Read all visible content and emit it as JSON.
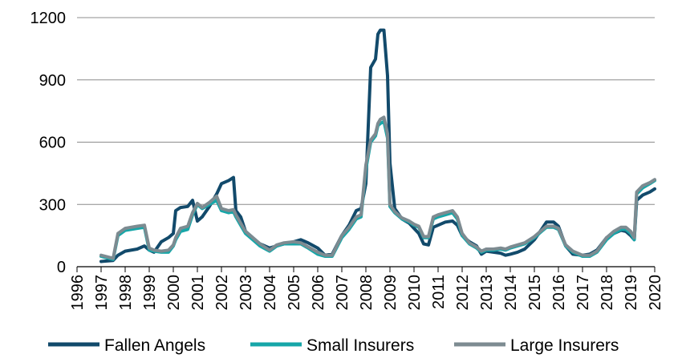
{
  "chart_data": {
    "type": "line",
    "title": "",
    "xlabel": "",
    "ylabel": "",
    "xlim": [
      1996,
      2020
    ],
    "ylim": [
      0,
      1200
    ],
    "x_ticks": [
      "1996",
      "1997",
      "1998",
      "1999",
      "2000",
      "2001",
      "2002",
      "2003",
      "2004",
      "2005",
      "2006",
      "2007",
      "2008",
      "2009",
      "2010",
      "2011",
      "2012",
      "2013",
      "2014",
      "2015",
      "2016",
      "2017",
      "2018",
      "2019",
      "2020"
    ],
    "y_ticks": [
      "0",
      "300",
      "600",
      "900",
      "1200"
    ],
    "grid": "horizontal",
    "legend_position": "bottom",
    "series": [
      {
        "name": "Fallen Angels",
        "color": "#124a6b",
        "points": [
          [
            1997.0,
            25
          ],
          [
            1997.5,
            30
          ],
          [
            1997.7,
            55
          ],
          [
            1998.0,
            75
          ],
          [
            1998.5,
            85
          ],
          [
            1998.8,
            100
          ],
          [
            1999.0,
            80
          ],
          [
            1999.2,
            70
          ],
          [
            1999.5,
            120
          ],
          [
            1999.8,
            140
          ],
          [
            2000.0,
            160
          ],
          [
            2000.1,
            270
          ],
          [
            2000.3,
            285
          ],
          [
            2000.6,
            290
          ],
          [
            2000.8,
            320
          ],
          [
            2001.0,
            220
          ],
          [
            2001.2,
            240
          ],
          [
            2001.5,
            290
          ],
          [
            2001.8,
            350
          ],
          [
            2002.0,
            400
          ],
          [
            2002.3,
            415
          ],
          [
            2002.5,
            430
          ],
          [
            2002.6,
            270
          ],
          [
            2002.8,
            240
          ],
          [
            2003.0,
            170
          ],
          [
            2003.3,
            140
          ],
          [
            2003.6,
            110
          ],
          [
            2004.0,
            90
          ],
          [
            2004.3,
            100
          ],
          [
            2004.6,
            110
          ],
          [
            2005.0,
            120
          ],
          [
            2005.3,
            130
          ],
          [
            2005.6,
            115
          ],
          [
            2006.0,
            90
          ],
          [
            2006.3,
            55
          ],
          [
            2006.6,
            60
          ],
          [
            2007.0,
            150
          ],
          [
            2007.3,
            200
          ],
          [
            2007.6,
            270
          ],
          [
            2007.8,
            280
          ],
          [
            2008.0,
            400
          ],
          [
            2008.2,
            960
          ],
          [
            2008.4,
            1000
          ],
          [
            2008.5,
            1120
          ],
          [
            2008.6,
            1140
          ],
          [
            2008.75,
            1140
          ],
          [
            2008.9,
            920
          ],
          [
            2009.0,
            500
          ],
          [
            2009.2,
            280
          ],
          [
            2009.5,
            230
          ],
          [
            2009.8,
            210
          ],
          [
            2010.0,
            185
          ],
          [
            2010.2,
            160
          ],
          [
            2010.4,
            110
          ],
          [
            2010.6,
            105
          ],
          [
            2010.8,
            190
          ],
          [
            2011.0,
            200
          ],
          [
            2011.3,
            215
          ],
          [
            2011.6,
            220
          ],
          [
            2011.8,
            200
          ],
          [
            2012.0,
            150
          ],
          [
            2012.3,
            120
          ],
          [
            2012.6,
            100
          ],
          [
            2012.8,
            60
          ],
          [
            2013.0,
            75
          ],
          [
            2013.3,
            70
          ],
          [
            2013.6,
            65
          ],
          [
            2013.8,
            55
          ],
          [
            2014.0,
            60
          ],
          [
            2014.3,
            70
          ],
          [
            2014.6,
            85
          ],
          [
            2015.0,
            130
          ],
          [
            2015.3,
            180
          ],
          [
            2015.5,
            215
          ],
          [
            2015.8,
            215
          ],
          [
            2016.0,
            195
          ],
          [
            2016.3,
            100
          ],
          [
            2016.6,
            60
          ],
          [
            2017.0,
            55
          ],
          [
            2017.3,
            60
          ],
          [
            2017.6,
            80
          ],
          [
            2018.0,
            140
          ],
          [
            2018.3,
            160
          ],
          [
            2018.6,
            175
          ],
          [
            2018.8,
            170
          ],
          [
            2019.0,
            150
          ],
          [
            2019.15,
            130
          ],
          [
            2019.25,
            320
          ],
          [
            2019.5,
            345
          ],
          [
            2019.8,
            360
          ],
          [
            2020.0,
            375
          ]
        ]
      },
      {
        "name": "Small Insurers",
        "color": "#17a6a8",
        "points": [
          [
            1997.0,
            50
          ],
          [
            1997.5,
            35
          ],
          [
            1997.7,
            150
          ],
          [
            1998.0,
            175
          ],
          [
            1998.5,
            185
          ],
          [
            1998.8,
            190
          ],
          [
            1999.0,
            80
          ],
          [
            1999.2,
            75
          ],
          [
            1999.5,
            70
          ],
          [
            1999.8,
            70
          ],
          [
            2000.0,
            100
          ],
          [
            2000.1,
            130
          ],
          [
            2000.3,
            170
          ],
          [
            2000.6,
            180
          ],
          [
            2000.8,
            250
          ],
          [
            2001.0,
            300
          ],
          [
            2001.2,
            280
          ],
          [
            2001.5,
            300
          ],
          [
            2001.8,
            320
          ],
          [
            2002.0,
            270
          ],
          [
            2002.3,
            260
          ],
          [
            2002.5,
            265
          ],
          [
            2002.6,
            240
          ],
          [
            2002.8,
            200
          ],
          [
            2003.0,
            160
          ],
          [
            2003.3,
            130
          ],
          [
            2003.6,
            100
          ],
          [
            2004.0,
            75
          ],
          [
            2004.3,
            100
          ],
          [
            2004.6,
            110
          ],
          [
            2005.0,
            110
          ],
          [
            2005.3,
            110
          ],
          [
            2005.6,
            90
          ],
          [
            2006.0,
            60
          ],
          [
            2006.3,
            50
          ],
          [
            2006.6,
            50
          ],
          [
            2007.0,
            140
          ],
          [
            2007.3,
            180
          ],
          [
            2007.6,
            230
          ],
          [
            2007.8,
            240
          ],
          [
            2008.0,
            470
          ],
          [
            2008.2,
            600
          ],
          [
            2008.4,
            630
          ],
          [
            2008.5,
            680
          ],
          [
            2008.6,
            690
          ],
          [
            2008.75,
            700
          ],
          [
            2008.9,
            620
          ],
          [
            2009.0,
            290
          ],
          [
            2009.2,
            260
          ],
          [
            2009.5,
            230
          ],
          [
            2009.8,
            215
          ],
          [
            2010.0,
            200
          ],
          [
            2010.2,
            190
          ],
          [
            2010.4,
            140
          ],
          [
            2010.6,
            140
          ],
          [
            2010.8,
            230
          ],
          [
            2011.0,
            240
          ],
          [
            2011.3,
            250
          ],
          [
            2011.6,
            260
          ],
          [
            2011.8,
            230
          ],
          [
            2012.0,
            150
          ],
          [
            2012.3,
            110
          ],
          [
            2012.6,
            90
          ],
          [
            2012.8,
            70
          ],
          [
            2013.0,
            80
          ],
          [
            2013.3,
            80
          ],
          [
            2013.6,
            85
          ],
          [
            2013.8,
            80
          ],
          [
            2014.0,
            90
          ],
          [
            2014.3,
            100
          ],
          [
            2014.6,
            110
          ],
          [
            2015.0,
            140
          ],
          [
            2015.3,
            170
          ],
          [
            2015.5,
            190
          ],
          [
            2015.8,
            190
          ],
          [
            2016.0,
            180
          ],
          [
            2016.3,
            100
          ],
          [
            2016.6,
            70
          ],
          [
            2017.0,
            50
          ],
          [
            2017.3,
            50
          ],
          [
            2017.6,
            70
          ],
          [
            2018.0,
            130
          ],
          [
            2018.3,
            160
          ],
          [
            2018.6,
            180
          ],
          [
            2018.8,
            180
          ],
          [
            2019.0,
            160
          ],
          [
            2019.15,
            130
          ],
          [
            2019.25,
            350
          ],
          [
            2019.5,
            380
          ],
          [
            2019.8,
            400
          ],
          [
            2020.0,
            415
          ]
        ]
      },
      {
        "name": "Large Insurers",
        "color": "#7d8b91",
        "points": [
          [
            1997.0,
            55
          ],
          [
            1997.5,
            40
          ],
          [
            1997.7,
            160
          ],
          [
            1998.0,
            185
          ],
          [
            1998.5,
            195
          ],
          [
            1998.8,
            200
          ],
          [
            1999.0,
            90
          ],
          [
            1999.2,
            80
          ],
          [
            1999.5,
            75
          ],
          [
            1999.8,
            80
          ],
          [
            2000.0,
            105
          ],
          [
            2000.1,
            140
          ],
          [
            2000.3,
            185
          ],
          [
            2000.6,
            195
          ],
          [
            2000.8,
            260
          ],
          [
            2001.0,
            305
          ],
          [
            2001.2,
            285
          ],
          [
            2001.5,
            310
          ],
          [
            2001.8,
            340
          ],
          [
            2002.0,
            280
          ],
          [
            2002.3,
            270
          ],
          [
            2002.5,
            275
          ],
          [
            2002.6,
            250
          ],
          [
            2002.8,
            210
          ],
          [
            2003.0,
            170
          ],
          [
            2003.3,
            140
          ],
          [
            2003.6,
            110
          ],
          [
            2004.0,
            80
          ],
          [
            2004.3,
            105
          ],
          [
            2004.6,
            115
          ],
          [
            2005.0,
            120
          ],
          [
            2005.3,
            115
          ],
          [
            2005.6,
            95
          ],
          [
            2006.0,
            70
          ],
          [
            2006.3,
            55
          ],
          [
            2006.6,
            55
          ],
          [
            2007.0,
            150
          ],
          [
            2007.3,
            190
          ],
          [
            2007.6,
            240
          ],
          [
            2007.8,
            250
          ],
          [
            2008.0,
            490
          ],
          [
            2008.2,
            610
          ],
          [
            2008.4,
            640
          ],
          [
            2008.5,
            690
          ],
          [
            2008.6,
            710
          ],
          [
            2008.75,
            720
          ],
          [
            2008.9,
            640
          ],
          [
            2009.0,
            300
          ],
          [
            2009.2,
            265
          ],
          [
            2009.5,
            235
          ],
          [
            2009.8,
            220
          ],
          [
            2010.0,
            205
          ],
          [
            2010.2,
            195
          ],
          [
            2010.4,
            145
          ],
          [
            2010.6,
            145
          ],
          [
            2010.8,
            240
          ],
          [
            2011.0,
            250
          ],
          [
            2011.3,
            260
          ],
          [
            2011.6,
            270
          ],
          [
            2011.8,
            240
          ],
          [
            2012.0,
            160
          ],
          [
            2012.3,
            115
          ],
          [
            2012.6,
            95
          ],
          [
            2012.8,
            75
          ],
          [
            2013.0,
            85
          ],
          [
            2013.3,
            85
          ],
          [
            2013.6,
            90
          ],
          [
            2013.8,
            85
          ],
          [
            2014.0,
            95
          ],
          [
            2014.3,
            105
          ],
          [
            2014.6,
            115
          ],
          [
            2015.0,
            145
          ],
          [
            2015.3,
            175
          ],
          [
            2015.5,
            195
          ],
          [
            2015.8,
            195
          ],
          [
            2016.0,
            185
          ],
          [
            2016.3,
            105
          ],
          [
            2016.6,
            75
          ],
          [
            2017.0,
            55
          ],
          [
            2017.3,
            55
          ],
          [
            2017.6,
            75
          ],
          [
            2018.0,
            140
          ],
          [
            2018.3,
            170
          ],
          [
            2018.6,
            190
          ],
          [
            2018.8,
            190
          ],
          [
            2019.0,
            170
          ],
          [
            2019.15,
            140
          ],
          [
            2019.25,
            360
          ],
          [
            2019.5,
            390
          ],
          [
            2019.8,
            405
          ],
          [
            2020.0,
            420
          ]
        ]
      }
    ]
  }
}
